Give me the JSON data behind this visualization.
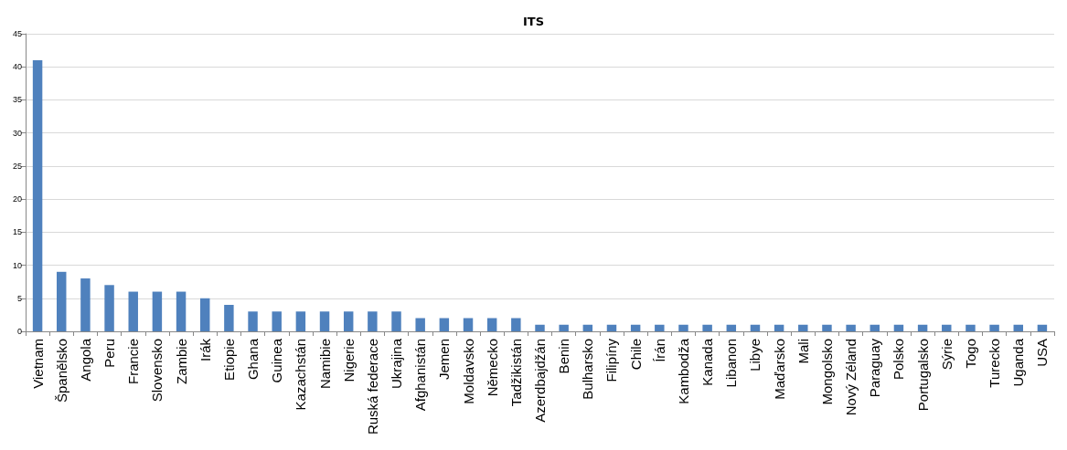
{
  "chart_data": {
    "type": "bar",
    "title": "ITS",
    "categories": [
      "Vietnam",
      "Španělsko",
      "Angola",
      "Peru",
      "Francie",
      "Slovensko",
      "Zambie",
      "Irák",
      "Etiopie",
      "Ghana",
      "Guinea",
      "Kazachstán",
      "Namibie",
      "Nigerie",
      "Ruská federace",
      "Ukrajina",
      "Afghanistán",
      "Jemen",
      "Moldavsko",
      "Německo",
      "Tadžikistán",
      "Azerdbajdžán",
      "Benin",
      "Bulharsko",
      "Filipíny",
      "Chile",
      "Írán",
      "Kambodža",
      "Kanada",
      "Libanon",
      "Libye",
      "Maďarsko",
      "Mali",
      "Mongolsko",
      "Nový Zéland",
      "Paraguay",
      "Polsko",
      "Portugalsko",
      "Sýrie",
      "Togo",
      "Turecko",
      "Uganda",
      "USA"
    ],
    "values": [
      41,
      9,
      8,
      7,
      6,
      6,
      6,
      5,
      4,
      3,
      3,
      3,
      3,
      3,
      3,
      3,
      2,
      2,
      2,
      2,
      2,
      1,
      1,
      1,
      1,
      1,
      1,
      1,
      1,
      1,
      1,
      1,
      1,
      1,
      1,
      1,
      1,
      1,
      1,
      1,
      1,
      1,
      1
    ],
    "color": "#4f81bd",
    "ylim": [
      0,
      45
    ],
    "yticks": [
      0,
      5,
      10,
      15,
      20,
      25,
      30,
      35,
      40,
      45
    ],
    "grid": "y"
  }
}
